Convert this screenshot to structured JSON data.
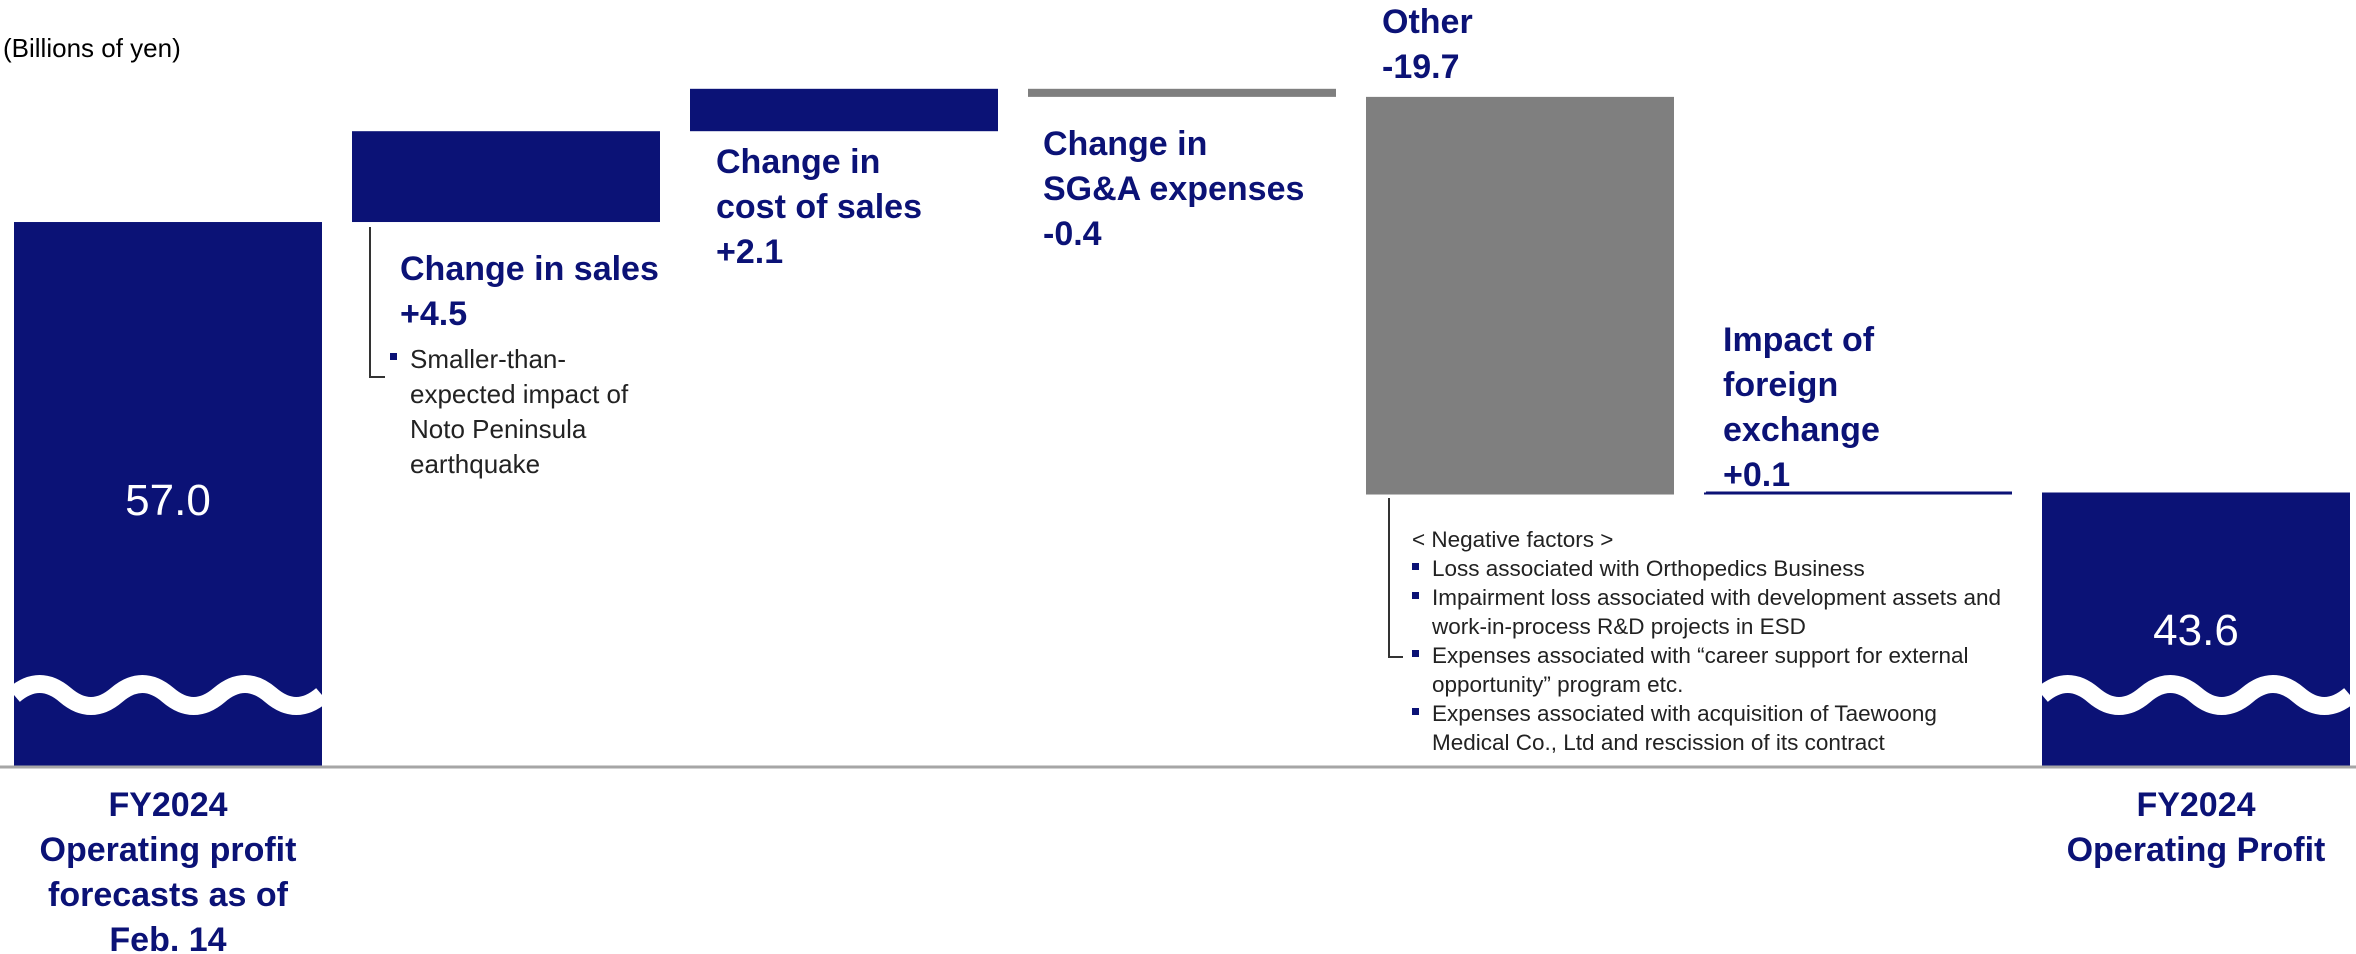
{
  "chart_data": {
    "type": "waterfall",
    "unit_label": "(Billions of yen)",
    "categories": [
      "FY2024 Operating profit forecasts as of Feb. 14",
      "Change in sales",
      "Change in cost of sales",
      "Change in SG&A expenses",
      "Other",
      "Impact of foreign exchange",
      "FY2024 Operating Profit"
    ],
    "values": [
      57.0,
      4.5,
      2.1,
      -0.4,
      -19.7,
      0.1,
      43.6
    ],
    "value_labels": [
      "57.0",
      "+4.5",
      "+2.1",
      "-0.4",
      "-19.7",
      "+0.1",
      "43.6"
    ],
    "colors": [
      "#0b1276",
      "#0b1276",
      "#0b1276",
      "#7f7f7f",
      "#7f7f7f",
      "#0b1276",
      "#0b1276"
    ],
    "ylim": [
      30,
      68
    ],
    "notes_change_in_sales": [
      "Smaller-than-expected impact of Noto Peninsula earthquake"
    ],
    "notes_other_heading": "< Negative factors >",
    "notes_other": [
      "Loss associated with Orthopedics Business",
      "Impairment loss associated with development assets and work-in-process R&D projects in ESD",
      "Expenses associated with “career support for external opportunity” program etc.",
      "Expenses associated with acquisition of Taewoong Medical Co., Ltd and rescission of its contract"
    ]
  }
}
